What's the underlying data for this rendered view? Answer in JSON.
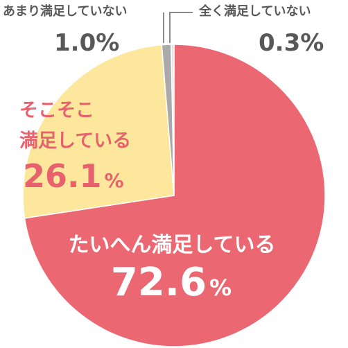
{
  "chart_data": {
    "type": "pie",
    "slices": [
      {
        "label": "たいへん満足している",
        "value": 72.6,
        "pct_text": "72.6",
        "unit": "%",
        "color": "#eb6872"
      },
      {
        "label_lines": [
          "そこそこ",
          "満足している"
        ],
        "value": 26.1,
        "pct_text": "26.1",
        "unit": "%",
        "color": "#fce79d"
      },
      {
        "label": "あまり満足していない",
        "value": 1.0,
        "pct_text": "1.0%",
        "color": "#a9aaa9"
      },
      {
        "label": "全く満足していない",
        "value": 0.3,
        "pct_text": "0.3%",
        "color": "#e3e4e4"
      }
    ],
    "label_colors": {
      "white": "#ffffff",
      "red": "#e8626d",
      "gray": "#595757"
    }
  }
}
